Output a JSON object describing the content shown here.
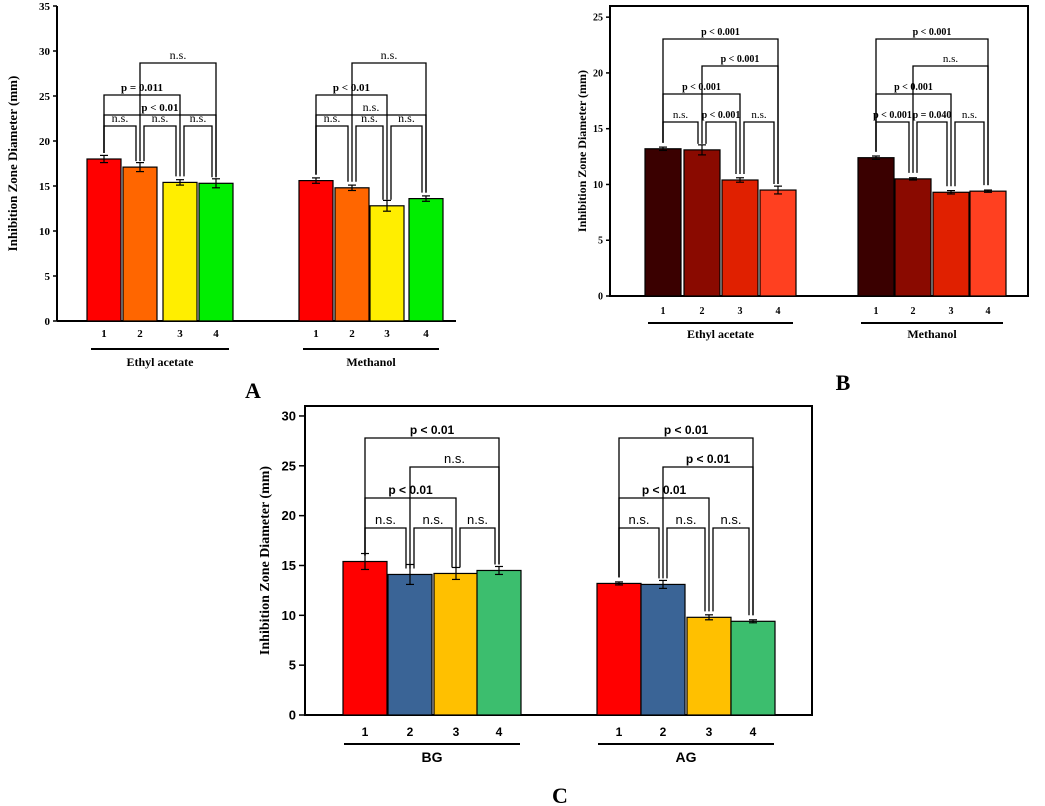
{
  "panel_labels": {
    "A": "A",
    "B": "B",
    "C": "C"
  },
  "chart_data": [
    {
      "id": "A",
      "type": "bar",
      "ylabel": "Inhibition Zone Diameter (mm)",
      "ylim": [
        0,
        35
      ],
      "yticks": [
        0,
        5,
        10,
        15,
        20,
        25,
        30,
        35
      ],
      "groups": [
        {
          "name": "Ethyl acetate",
          "categories": [
            "1",
            "2",
            "3",
            "4"
          ],
          "values": [
            18.0,
            17.1,
            15.4,
            15.3
          ],
          "errors": [
            0.4,
            0.5,
            0.3,
            0.5
          ],
          "colors": [
            "#ff0000",
            "#ff6600",
            "#ffee00",
            "#00ee00"
          ],
          "comparisons": [
            {
              "from": 1,
              "to": 4,
              "label": "p < 0.01"
            },
            {
              "from": 2,
              "to": 4,
              "label": "n.s."
            },
            {
              "from": 1,
              "to": 3,
              "label": "p = 0.011"
            },
            {
              "from": 1,
              "to": 2,
              "label": "n.s."
            },
            {
              "from": 2,
              "to": 3,
              "label": "n.s."
            },
            {
              "from": 3,
              "to": 4,
              "label": "n.s."
            }
          ]
        },
        {
          "name": "Methanol",
          "categories": [
            "1",
            "2",
            "3",
            "4"
          ],
          "values": [
            15.6,
            14.8,
            12.8,
            13.6
          ],
          "errors": [
            0.3,
            0.3,
            0.6,
            0.3
          ],
          "colors": [
            "#ff0000",
            "#ff6600",
            "#ffee00",
            "#00ee00"
          ],
          "comparisons": [
            {
              "from": 1,
              "to": 4,
              "label": "n.s."
            },
            {
              "from": 2,
              "to": 4,
              "label": "n.s."
            },
            {
              "from": 1,
              "to": 3,
              "label": "p < 0.01"
            },
            {
              "from": 1,
              "to": 2,
              "label": "n.s."
            },
            {
              "from": 2,
              "to": 3,
              "label": "n.s."
            },
            {
              "from": 3,
              "to": 4,
              "label": "n.s."
            }
          ]
        }
      ]
    },
    {
      "id": "B",
      "type": "bar",
      "ylabel": "Inhibition Zone Diameter (mm)",
      "ylim": [
        0,
        26
      ],
      "yticks": [
        0,
        5,
        10,
        15,
        20,
        25
      ],
      "groups": [
        {
          "name": "Ethyl acetate",
          "categories": [
            "1",
            "2",
            "3",
            "4"
          ],
          "values": [
            13.2,
            13.1,
            10.4,
            9.5
          ],
          "errors": [
            0.15,
            0.45,
            0.2,
            0.35
          ],
          "colors": [
            "#3a0000",
            "#8a0a00",
            "#e02000",
            "#ff4020"
          ],
          "comparisons": [
            {
              "from": 1,
              "to": 4,
              "label": "p < 0.001"
            },
            {
              "from": 2,
              "to": 4,
              "label": "p < 0.001"
            },
            {
              "from": 1,
              "to": 3,
              "label": "p < 0.001"
            },
            {
              "from": 1,
              "to": 2,
              "label": "n.s."
            },
            {
              "from": 2,
              "to": 3,
              "label": "p < 0.001"
            },
            {
              "from": 3,
              "to": 4,
              "label": "n.s."
            }
          ]
        },
        {
          "name": "Methanol",
          "categories": [
            "1",
            "2",
            "3",
            "4"
          ],
          "values": [
            12.4,
            10.5,
            9.3,
            9.4
          ],
          "errors": [
            0.15,
            0.1,
            0.15,
            0.1
          ],
          "colors": [
            "#3a0000",
            "#8a0a00",
            "#e02000",
            "#ff4020"
          ],
          "comparisons": [
            {
              "from": 1,
              "to": 4,
              "label": "p < 0.001"
            },
            {
              "from": 2,
              "to": 4,
              "label": "n.s."
            },
            {
              "from": 1,
              "to": 3,
              "label": "p < 0.001"
            },
            {
              "from": 1,
              "to": 2,
              "label": "p < 0.001"
            },
            {
              "from": 2,
              "to": 3,
              "label": "p = 0.040"
            },
            {
              "from": 3,
              "to": 4,
              "label": "n.s."
            }
          ]
        }
      ]
    },
    {
      "id": "C",
      "type": "bar",
      "ylabel": "Inhibition Zone Diameter (mm)",
      "ylim": [
        0,
        31
      ],
      "yticks": [
        0,
        5,
        10,
        15,
        20,
        25,
        30
      ],
      "groups": [
        {
          "name": "BG",
          "categories": [
            "1",
            "2",
            "3",
            "4"
          ],
          "values": [
            15.4,
            14.1,
            14.2,
            14.5
          ],
          "errors": [
            0.8,
            1.0,
            0.6,
            0.4
          ],
          "colors": [
            "#ff0000",
            "#3a6496",
            "#ffc000",
            "#3cbe6e"
          ],
          "comparisons": [
            {
              "from": 1,
              "to": 4,
              "label": "p < 0.01"
            },
            {
              "from": 2,
              "to": 4,
              "label": "n.s."
            },
            {
              "from": 1,
              "to": 3,
              "label": "p < 0.01"
            },
            {
              "from": 1,
              "to": 2,
              "label": "n.s."
            },
            {
              "from": 2,
              "to": 3,
              "label": "n.s."
            },
            {
              "from": 3,
              "to": 4,
              "label": "n.s."
            }
          ]
        },
        {
          "name": "AG",
          "categories": [
            "1",
            "2",
            "3",
            "4"
          ],
          "values": [
            13.2,
            13.1,
            9.8,
            9.4
          ],
          "errors": [
            0.15,
            0.4,
            0.25,
            0.15
          ],
          "colors": [
            "#ff0000",
            "#3a6496",
            "#ffc000",
            "#3cbe6e"
          ],
          "comparisons": [
            {
              "from": 1,
              "to": 4,
              "label": "p < 0.01"
            },
            {
              "from": 2,
              "to": 4,
              "label": "p < 0.01"
            },
            {
              "from": 1,
              "to": 3,
              "label": "p < 0.01"
            },
            {
              "from": 1,
              "to": 2,
              "label": "n.s."
            },
            {
              "from": 2,
              "to": 3,
              "label": "n.s."
            },
            {
              "from": 3,
              "to": 4,
              "label": "n.s."
            }
          ]
        }
      ]
    }
  ]
}
